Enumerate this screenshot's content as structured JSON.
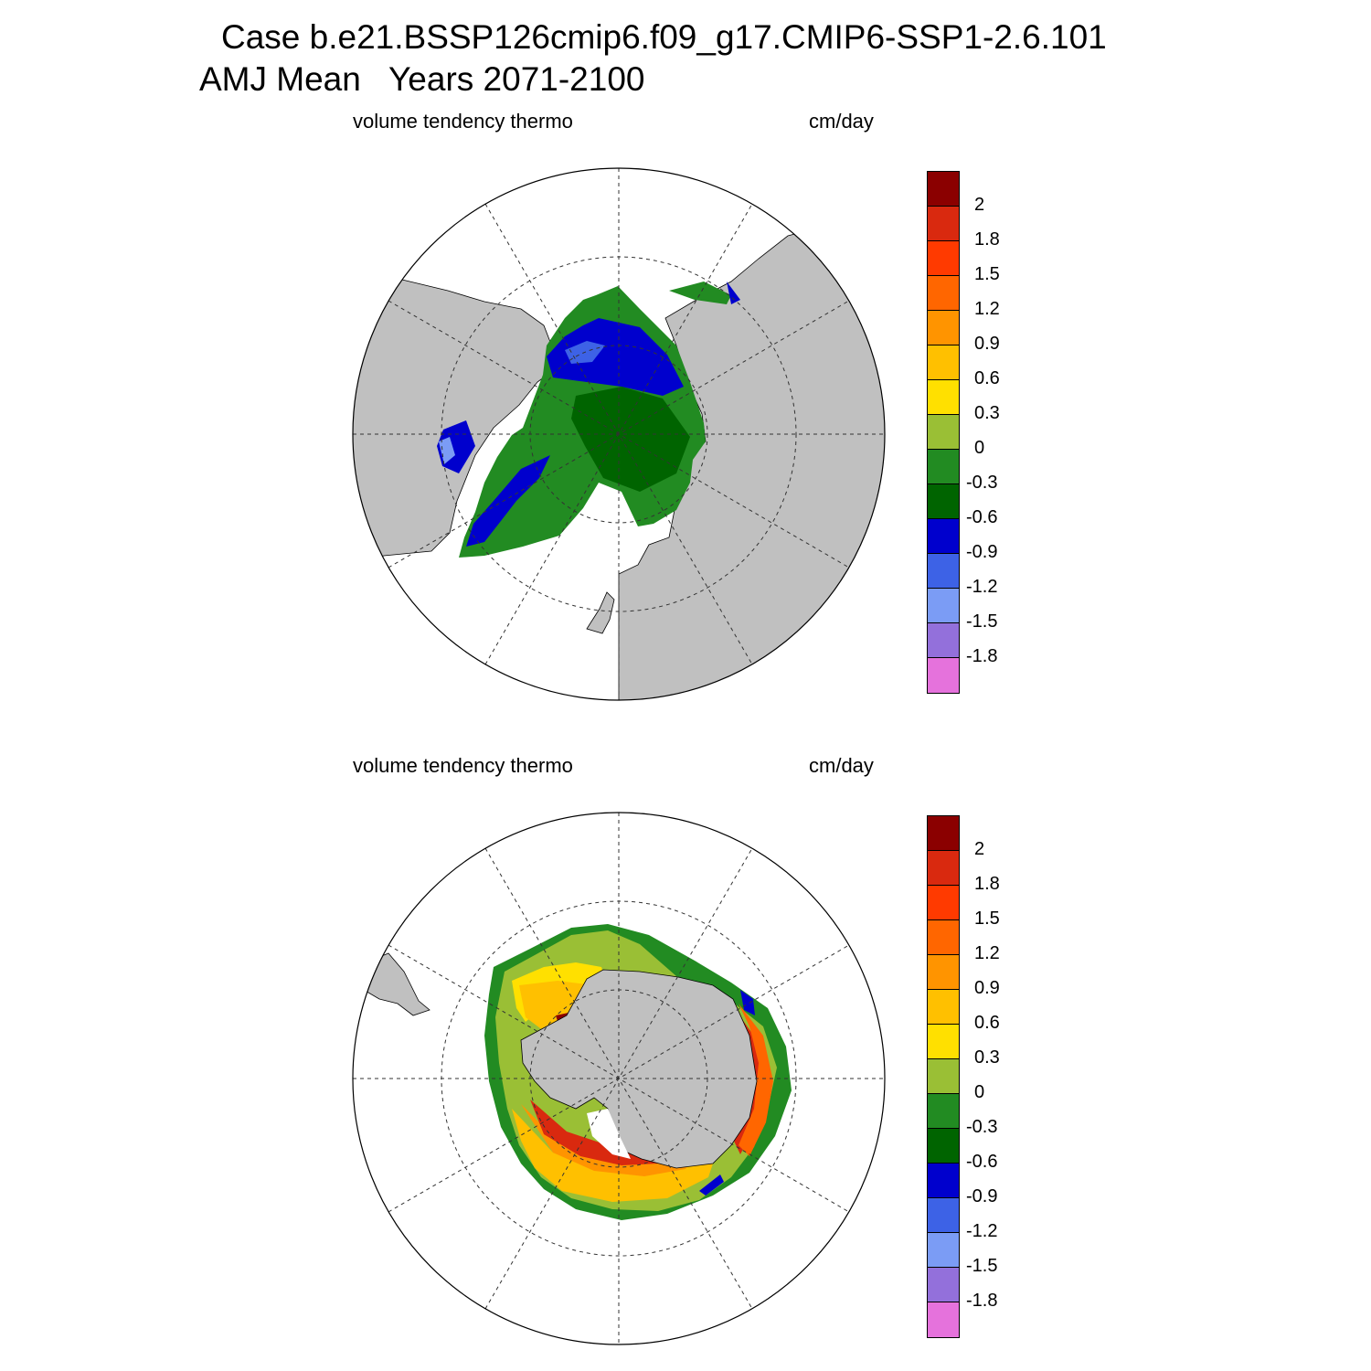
{
  "title": {
    "line1": "Case b.e21.BSSP126cmip6.f09_g17.CMIP6-SSP1-2.6.101",
    "line2": "AMJ Mean   Years 2071-2100"
  },
  "panels": [
    {
      "id": "north",
      "hemisphere": "Northern",
      "variable_label": "volume tendency thermo",
      "units_label": "cm/day"
    },
    {
      "id": "south",
      "hemisphere": "Southern",
      "variable_label": "volume tendency thermo",
      "units_label": "cm/day"
    }
  ],
  "colorbar": {
    "colors": [
      "#8b0000",
      "#d9290f",
      "#ff3a00",
      "#ff6600",
      "#ff9400",
      "#ffc000",
      "#ffe000",
      "#9abf35",
      "#228b22",
      "#006400",
      "#0000cd",
      "#3d62e6",
      "#7b9cf5",
      "#9370db",
      "#e572dc"
    ],
    "tick_labels": [
      "2",
      "1.8",
      "1.5",
      "1.2",
      "0.9",
      "0.6",
      "0.3",
      "0",
      "-0.3",
      "-0.6",
      "-0.9",
      "-1.2",
      "-1.5",
      "-1.8"
    ]
  },
  "colors": {
    "land": "#c0c0c0",
    "ocean_no_ice": "#ffffff"
  }
}
